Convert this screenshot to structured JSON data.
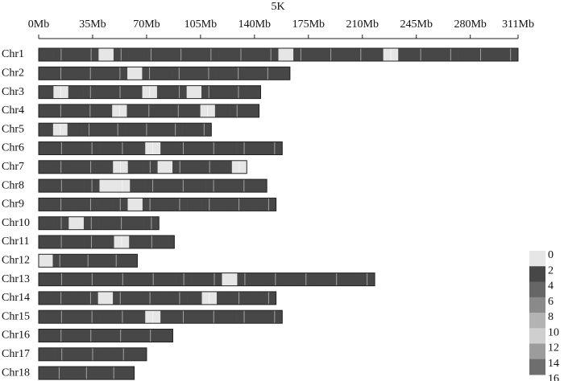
{
  "chart_data": {
    "type": "chromosome-density",
    "title": "5K",
    "xlim": [
      0,
      311
    ],
    "xticks": [
      {
        "value": 0,
        "label": "0Mb"
      },
      {
        "value": 35,
        "label": "35Mb"
      },
      {
        "value": 70,
        "label": "70Mb"
      },
      {
        "value": 105,
        "label": "105Mb"
      },
      {
        "value": 140,
        "label": "140Mb"
      },
      {
        "value": 175,
        "label": "175Mb"
      },
      {
        "value": 210,
        "label": "210Mb"
      },
      {
        "value": 245,
        "label": "245Mb"
      },
      {
        "value": 280,
        "label": "280Mb"
      },
      {
        "value": 311,
        "label": "311Mb"
      }
    ],
    "legend_ticks": [
      0,
      2,
      4,
      6,
      8,
      10,
      12,
      14,
      16
    ],
    "colors": [
      "#e6e6e6",
      "#474747",
      "#666666",
      "#8a8a8a",
      "#b3b3b3",
      "#cfcfcf",
      "#9c9c9c",
      "#6e6e6e"
    ],
    "chromosomes": [
      {
        "name": "Chr1",
        "length": 311,
        "values": [
          2,
          3,
          2,
          2,
          1,
          2,
          3,
          2,
          2,
          2,
          3,
          2,
          2,
          2,
          2,
          3,
          0,
          2,
          2,
          3,
          2,
          2,
          2,
          1,
          2,
          2,
          3,
          2,
          2,
          2,
          2,
          3
        ]
      },
      {
        "name": "Chr2",
        "length": 163,
        "values": [
          2,
          2,
          3,
          2,
          2,
          2,
          1,
          2,
          2,
          3,
          2,
          2,
          2,
          2,
          3,
          2,
          2
        ]
      },
      {
        "name": "Chr3",
        "length": 144,
        "values": [
          2,
          1,
          2,
          2,
          3,
          2,
          2,
          1,
          2,
          2,
          1,
          2,
          3,
          2,
          2
        ]
      },
      {
        "name": "Chr4",
        "length": 143,
        "values": [
          2,
          2,
          2,
          2,
          2,
          1,
          2,
          2,
          2,
          3,
          2,
          0,
          2,
          2,
          2
        ]
      },
      {
        "name": "Chr5",
        "length": 112,
        "values": [
          2,
          1,
          2,
          2,
          2,
          2,
          3,
          2,
          2,
          2,
          2,
          2
        ]
      },
      {
        "name": "Chr6",
        "length": 158,
        "values": [
          2,
          2,
          3,
          2,
          2,
          2,
          2,
          1,
          2,
          2,
          3,
          2,
          2,
          2,
          2,
          2
        ]
      },
      {
        "name": "Chr7",
        "length": 135,
        "values": [
          2,
          2,
          3,
          2,
          2,
          0,
          2,
          2,
          1,
          2,
          2,
          2,
          2,
          1
        ]
      },
      {
        "name": "Chr8",
        "length": 148,
        "values": [
          2,
          2,
          2,
          2,
          0,
          1,
          2,
          2,
          2,
          3,
          2,
          2,
          2,
          2,
          2
        ]
      },
      {
        "name": "Chr9",
        "length": 154,
        "values": [
          2,
          2,
          3,
          2,
          2,
          2,
          1,
          2,
          2,
          2,
          3,
          2,
          2,
          2,
          2,
          2
        ]
      },
      {
        "name": "Chr10",
        "length": 78,
        "values": [
          2,
          2,
          1,
          2,
          2,
          2,
          3,
          2
        ]
      },
      {
        "name": "Chr11",
        "length": 88,
        "values": [
          2,
          2,
          2,
          2,
          2,
          1,
          2,
          2,
          2
        ]
      },
      {
        "name": "Chr12",
        "length": 64,
        "values": [
          1,
          2,
          2,
          2,
          2,
          2,
          2
        ]
      },
      {
        "name": "Chr13",
        "length": 218,
        "values": [
          2,
          2,
          3,
          2,
          2,
          2,
          2,
          3,
          2,
          2,
          2,
          2,
          1,
          2,
          2,
          3,
          2,
          2,
          2,
          2,
          2,
          2
        ]
      },
      {
        "name": "Chr14",
        "length": 154,
        "values": [
          2,
          2,
          2,
          2,
          1,
          2,
          2,
          2,
          2,
          2,
          2,
          1,
          2,
          2,
          2,
          2
        ]
      },
      {
        "name": "Chr15",
        "length": 158,
        "values": [
          2,
          3,
          2,
          2,
          2,
          2,
          2,
          0,
          2,
          2,
          2,
          3,
          2,
          2,
          2,
          2
        ]
      },
      {
        "name": "Chr16",
        "length": 87,
        "values": [
          2,
          2,
          2,
          2,
          2,
          2,
          3,
          2,
          2
        ]
      },
      {
        "name": "Chr17",
        "length": 70,
        "values": [
          2,
          2,
          2,
          2,
          2,
          2,
          2
        ]
      },
      {
        "name": "Chr18",
        "length": 62,
        "values": [
          2,
          2,
          2,
          2,
          2,
          2,
          2
        ]
      }
    ]
  }
}
